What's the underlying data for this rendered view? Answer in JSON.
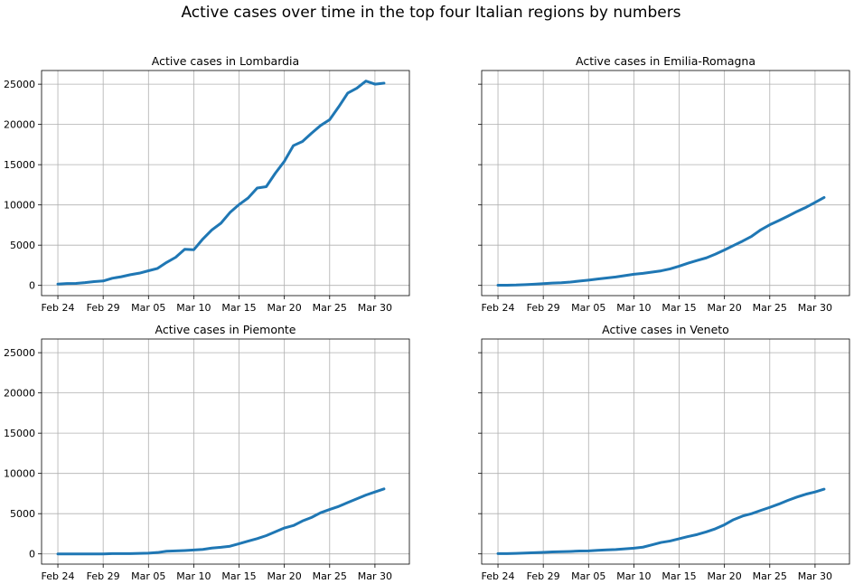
{
  "figure": {
    "suptitle": "Active cases over time in the top four Italian regions by numbers"
  },
  "colors": {
    "line": "#1f77b4",
    "grid": "#b0b0b0",
    "background": "#ffffff"
  },
  "chart_data": [
    {
      "type": "line",
      "title": "Active cases in Lombardia",
      "x": [
        "2020-02-24",
        "2020-02-25",
        "2020-02-26",
        "2020-02-27",
        "2020-02-28",
        "2020-02-29",
        "2020-03-01",
        "2020-03-02",
        "2020-03-03",
        "2020-03-04",
        "2020-03-05",
        "2020-03-06",
        "2020-03-07",
        "2020-03-08",
        "2020-03-09",
        "2020-03-10",
        "2020-03-11",
        "2020-03-12",
        "2020-03-13",
        "2020-03-14",
        "2020-03-15",
        "2020-03-16",
        "2020-03-17",
        "2020-03-18",
        "2020-03-19",
        "2020-03-20",
        "2020-03-21",
        "2020-03-22",
        "2020-03-23",
        "2020-03-24",
        "2020-03-25",
        "2020-03-26",
        "2020-03-27",
        "2020-03-28",
        "2020-03-29",
        "2020-03-30",
        "2020-03-31"
      ],
      "series": [
        {
          "values": [
            166,
            231,
            249,
            349,
            474,
            552,
            887,
            1077,
            1326,
            1520,
            1820,
            2112,
            2856,
            3489,
            4490,
            4427,
            5763,
            6896,
            7732,
            9059,
            10043,
            10861,
            12095,
            12266,
            13938,
            15420,
            17370,
            17885,
            18910,
            19868,
            20591,
            22189,
            23895,
            24509,
            25392,
            25006,
            25124
          ]
        }
      ],
      "xticks": [
        "Feb 24",
        "Feb 29",
        "Mar 05",
        "Mar 10",
        "Mar 15",
        "Mar 20",
        "Mar 25",
        "Mar 30"
      ],
      "yticks": [
        0,
        5000,
        10000,
        15000,
        20000,
        25000
      ],
      "ylim": [
        -1270,
        26700
      ],
      "grid": true,
      "show_yticklabels": true
    },
    {
      "type": "line",
      "title": "Active cases in Emilia-Romagna",
      "x": [
        "2020-02-24",
        "2020-02-25",
        "2020-02-26",
        "2020-02-27",
        "2020-02-28",
        "2020-02-29",
        "2020-03-01",
        "2020-03-02",
        "2020-03-03",
        "2020-03-04",
        "2020-03-05",
        "2020-03-06",
        "2020-03-07",
        "2020-03-08",
        "2020-03-09",
        "2020-03-10",
        "2020-03-11",
        "2020-03-12",
        "2020-03-13",
        "2020-03-14",
        "2020-03-15",
        "2020-03-16",
        "2020-03-17",
        "2020-03-18",
        "2020-03-19",
        "2020-03-20",
        "2020-03-21",
        "2020-03-22",
        "2020-03-23",
        "2020-03-24",
        "2020-03-25",
        "2020-03-26",
        "2020-03-27",
        "2020-03-28",
        "2020-03-29",
        "2020-03-30",
        "2020-03-31"
      ],
      "series": [
        {
          "values": [
            18,
            24,
            47,
            97,
            145,
            217,
            285,
            335,
            420,
            536,
            654,
            790,
            920,
            1050,
            1220,
            1380,
            1500,
            1650,
            1810,
            2050,
            2390,
            2770,
            3100,
            3420,
            3880,
            4400,
            4960,
            5500,
            6100,
            6900,
            7530,
            8050,
            8600,
            9180,
            9700,
            10310,
            10920
          ]
        }
      ],
      "xticks": [
        "Feb 24",
        "Feb 29",
        "Mar 05",
        "Mar 10",
        "Mar 15",
        "Mar 20",
        "Mar 25",
        "Mar 30"
      ],
      "yticks": [
        0,
        5000,
        10000,
        15000,
        20000,
        25000
      ],
      "ylim": [
        -1270,
        26700
      ],
      "grid": true,
      "show_yticklabels": false
    },
    {
      "type": "line",
      "title": "Active cases in Piemonte",
      "x": [
        "2020-02-24",
        "2020-02-25",
        "2020-02-26",
        "2020-02-27",
        "2020-02-28",
        "2020-02-29",
        "2020-03-01",
        "2020-03-02",
        "2020-03-03",
        "2020-03-04",
        "2020-03-05",
        "2020-03-06",
        "2020-03-07",
        "2020-03-08",
        "2020-03-09",
        "2020-03-10",
        "2020-03-11",
        "2020-03-12",
        "2020-03-13",
        "2020-03-14",
        "2020-03-15",
        "2020-03-16",
        "2020-03-17",
        "2020-03-18",
        "2020-03-19",
        "2020-03-20",
        "2020-03-21",
        "2020-03-22",
        "2020-03-23",
        "2020-03-24",
        "2020-03-25",
        "2020-03-26",
        "2020-03-27",
        "2020-03-28",
        "2020-03-29",
        "2020-03-30",
        "2020-03-31"
      ],
      "series": [
        {
          "values": [
            0,
            0,
            0,
            0,
            0,
            0,
            40,
            40,
            40,
            70,
            90,
            170,
            330,
            370,
            420,
            480,
            560,
            720,
            820,
            950,
            1260,
            1590,
            1900,
            2270,
            2740,
            3220,
            3520,
            4090,
            4530,
            5110,
            5520,
            5900,
            6380,
            6850,
            7310,
            7700,
            8070
          ]
        }
      ],
      "xticks": [
        "Feb 24",
        "Feb 29",
        "Mar 05",
        "Mar 10",
        "Mar 15",
        "Mar 20",
        "Mar 25",
        "Mar 30"
      ],
      "yticks": [
        0,
        5000,
        10000,
        15000,
        20000,
        25000
      ],
      "ylim": [
        -1270,
        26700
      ],
      "grid": true,
      "show_yticklabels": true
    },
    {
      "type": "line",
      "title": "Active cases in Veneto",
      "x": [
        "2020-02-24",
        "2020-02-25",
        "2020-02-26",
        "2020-02-27",
        "2020-02-28",
        "2020-02-29",
        "2020-03-01",
        "2020-03-02",
        "2020-03-03",
        "2020-03-04",
        "2020-03-05",
        "2020-03-06",
        "2020-03-07",
        "2020-03-08",
        "2020-03-09",
        "2020-03-10",
        "2020-03-11",
        "2020-03-12",
        "2020-03-13",
        "2020-03-14",
        "2020-03-15",
        "2020-03-16",
        "2020-03-17",
        "2020-03-18",
        "2020-03-19",
        "2020-03-20",
        "2020-03-21",
        "2020-03-22",
        "2020-03-23",
        "2020-03-24",
        "2020-03-25",
        "2020-03-26",
        "2020-03-27",
        "2020-03-28",
        "2020-03-29",
        "2020-03-30",
        "2020-03-31"
      ],
      "series": [
        {
          "values": [
            32,
            42,
            69,
            109,
            150,
            188,
            250,
            269,
            304,
            358,
            372,
            441,
            498,
            542,
            622,
            713,
            837,
            1120,
            1420,
            1600,
            1880,
            2160,
            2410,
            2740,
            3120,
            3620,
            4250,
            4700,
            5000,
            5400,
            5780,
            6190,
            6650,
            7060,
            7420,
            7700,
            8040
          ]
        }
      ],
      "xticks": [
        "Feb 24",
        "Feb 29",
        "Mar 05",
        "Mar 10",
        "Mar 15",
        "Mar 20",
        "Mar 25",
        "Mar 30"
      ],
      "yticks": [
        0,
        5000,
        10000,
        15000,
        20000,
        25000
      ],
      "ylim": [
        -1270,
        26700
      ],
      "grid": true,
      "show_yticklabels": false
    }
  ]
}
